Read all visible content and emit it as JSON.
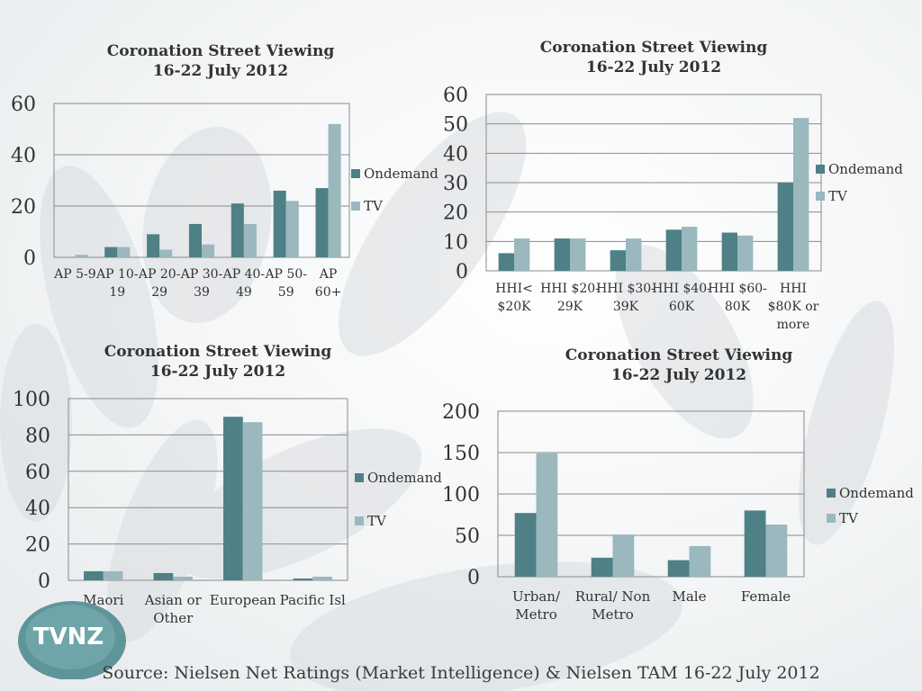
{
  "colors": {
    "ondemand": "#4e8086",
    "tv": "#9ab8be",
    "text": "#333333",
    "grid": "#8a8a8a"
  },
  "logo": {
    "text": "TVNZ"
  },
  "source": "Source: Nielsen Net Ratings (Market Intelligence) & Nielsen TAM 16-22 July 2012",
  "chart_data": [
    {
      "type": "bar",
      "title": [
        "Coronation Street Viewing",
        "16-22 July 2012"
      ],
      "categories": [
        [
          "AP 5-9"
        ],
        [
          "AP 10-",
          "19"
        ],
        [
          "AP 20-",
          "29"
        ],
        [
          "AP 30-",
          "39"
        ],
        [
          "AP 40-",
          "49"
        ],
        [
          "AP 50-",
          "59"
        ],
        [
          "AP",
          "60+"
        ]
      ],
      "series": [
        {
          "name": "Ondemand",
          "values": [
            0,
            4,
            9,
            13,
            21,
            26,
            27
          ]
        },
        {
          "name": "TV",
          "values": [
            1,
            4,
            3,
            5,
            13,
            22,
            52
          ]
        }
      ],
      "ylim": [
        0,
        60
      ],
      "yticks": [
        0,
        20,
        40,
        60
      ],
      "grid": true,
      "legend": "right"
    },
    {
      "type": "bar",
      "title": [
        "Coronation Street Viewing",
        "16-22 July 2012"
      ],
      "categories": [
        [
          "HHI<",
          "$20K"
        ],
        [
          "HHI $20-",
          "29K"
        ],
        [
          "HHI $30-",
          "39K"
        ],
        [
          "HHI $40-",
          "60K"
        ],
        [
          "HHI $60-",
          "80K"
        ],
        [
          "HHI",
          "$80K or",
          "more"
        ]
      ],
      "series": [
        {
          "name": "Ondemand",
          "values": [
            6,
            11,
            7,
            14,
            13,
            30
          ]
        },
        {
          "name": "TV",
          "values": [
            11,
            11,
            11,
            15,
            12,
            52
          ]
        }
      ],
      "ylim": [
        0,
        60
      ],
      "yticks": [
        0,
        10,
        20,
        30,
        40,
        50,
        60
      ],
      "grid": true,
      "legend": "right"
    },
    {
      "type": "bar",
      "title": [
        "Coronation Street Viewing",
        "16-22 July 2012"
      ],
      "categories": [
        [
          "Maori"
        ],
        [
          "Asian or",
          "Other"
        ],
        [
          "European"
        ],
        [
          "Pacific Isl"
        ]
      ],
      "series": [
        {
          "name": "Ondemand",
          "values": [
            5,
            4,
            90,
            1
          ]
        },
        {
          "name": "TV",
          "values": [
            5,
            2,
            87,
            2
          ]
        }
      ],
      "ylim": [
        0,
        100
      ],
      "yticks": [
        0,
        20,
        40,
        60,
        80,
        100
      ],
      "grid": true,
      "legend": "right"
    },
    {
      "type": "bar",
      "title": [
        "Coronation Street Viewing",
        "16-22 July 2012"
      ],
      "categories": [
        [
          "Urban/",
          "Metro"
        ],
        [
          "Rural/ Non",
          "Metro"
        ],
        [
          "Male"
        ],
        [
          "Female"
        ]
      ],
      "series": [
        {
          "name": "Ondemand",
          "values": [
            77,
            23,
            20,
            80
          ]
        },
        {
          "name": "TV",
          "values": [
            149,
            51,
            37,
            63
          ]
        }
      ],
      "ylim": [
        0,
        200
      ],
      "yticks": [
        0,
        50,
        100,
        150,
        200
      ],
      "grid": true,
      "legend": "right"
    }
  ]
}
